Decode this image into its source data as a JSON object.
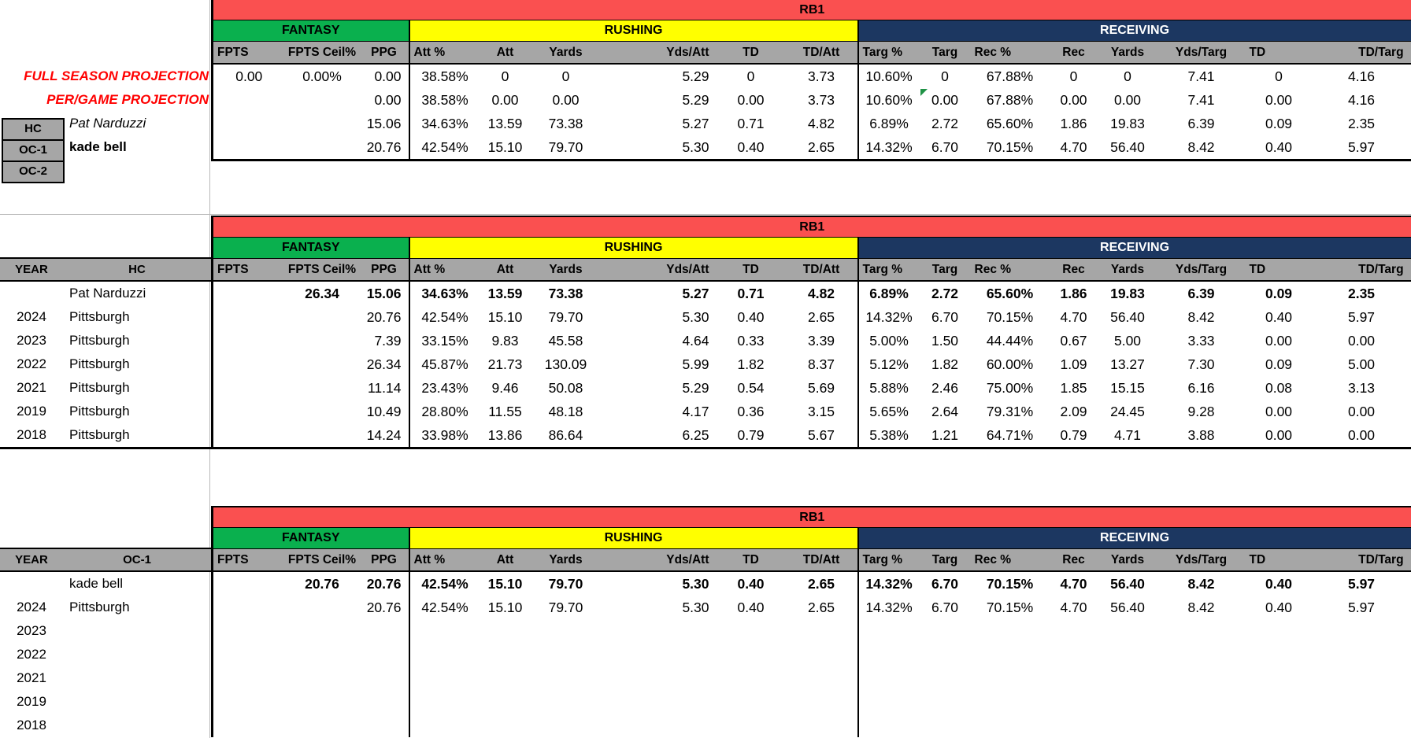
{
  "banner": "RB1",
  "sections": {
    "fantasy": "FANTASY",
    "rushing": "RUSHING",
    "receiving": "RECEIVING"
  },
  "stat_columns": [
    "FPTS",
    "FPTS Ceil%",
    "PPG",
    "Att %",
    "Att",
    "Yards",
    "Yds/Att",
    "TD",
    "TD/Att",
    "Targ %",
    "Targ",
    "Rec %",
    "Rec",
    "Yards",
    "Yds/Targ",
    "TD",
    "TD/Targ"
  ],
  "projection_labels": {
    "full_season": "FULL SEASON PROJECTION",
    "per_game": "PER/GAME PROJECTION"
  },
  "staff": {
    "hc_label": "HC",
    "oc1_label": "OC-1",
    "oc2_label": "OC-2",
    "hc_name": "Pat Narduzzi",
    "oc1_name": "kade bell"
  },
  "history_headers": {
    "year": "YEAR",
    "hc": "HC",
    "oc1": "OC-1"
  },
  "colors": {
    "banner_red": "#FA5050",
    "fantasy_green": "#0AB04E",
    "rushing_yellow": "#FFFF00",
    "receiving_navy": "#1C3761",
    "header_gray": "#A6A6A6",
    "projection_red": "#FF0000",
    "flag_green": "#1F9246"
  },
  "tables": [
    {
      "rows": [
        {
          "cells": [
            "0.00",
            "0.00%",
            "0.00",
            "38.58%",
            "0",
            "0",
            "5.29",
            "0",
            "3.73",
            "10.60%",
            "0",
            "67.88%",
            "0",
            "0",
            "7.41",
            "0",
            "4.16"
          ]
        },
        {
          "cells": [
            "",
            "",
            "0.00",
            "38.58%",
            "0.00",
            "0.00",
            "5.29",
            "0.00",
            "3.73",
            "10.60%",
            "0.00",
            "67.88%",
            "0.00",
            "0.00",
            "7.41",
            "0.00",
            "4.16"
          ],
          "flag_col": 10
        },
        {
          "cells": [
            "",
            "",
            "15.06",
            "34.63%",
            "13.59",
            "73.38",
            "5.27",
            "0.71",
            "4.82",
            "6.89%",
            "2.72",
            "65.60%",
            "1.86",
            "19.83",
            "6.39",
            "0.09",
            "2.35"
          ]
        },
        {
          "cells": [
            "",
            "",
            "20.76",
            "42.54%",
            "15.10",
            "79.70",
            "5.30",
            "0.40",
            "2.65",
            "14.32%",
            "6.70",
            "70.15%",
            "4.70",
            "56.40",
            "8.42",
            "0.40",
            "5.97"
          ]
        }
      ]
    },
    {
      "rows": [
        {
          "year": "",
          "team": "Pat Narduzzi",
          "bold": true,
          "cells": [
            "",
            "26.34",
            "15.06",
            "34.63%",
            "13.59",
            "73.38",
            "5.27",
            "0.71",
            "4.82",
            "6.89%",
            "2.72",
            "65.60%",
            "1.86",
            "19.83",
            "6.39",
            "0.09",
            "2.35"
          ]
        },
        {
          "year": "2024",
          "team": "Pittsburgh",
          "cells": [
            "",
            "",
            "20.76",
            "42.54%",
            "15.10",
            "79.70",
            "5.30",
            "0.40",
            "2.65",
            "14.32%",
            "6.70",
            "70.15%",
            "4.70",
            "56.40",
            "8.42",
            "0.40",
            "5.97"
          ]
        },
        {
          "year": "2023",
          "team": "Pittsburgh",
          "cells": [
            "",
            "",
            "7.39",
            "33.15%",
            "9.83",
            "45.58",
            "4.64",
            "0.33",
            "3.39",
            "5.00%",
            "1.50",
            "44.44%",
            "0.67",
            "5.00",
            "3.33",
            "0.00",
            "0.00"
          ]
        },
        {
          "year": "2022",
          "team": "Pittsburgh",
          "cells": [
            "",
            "",
            "26.34",
            "45.87%",
            "21.73",
            "130.09",
            "5.99",
            "1.82",
            "8.37",
            "5.12%",
            "1.82",
            "60.00%",
            "1.09",
            "13.27",
            "7.30",
            "0.09",
            "5.00"
          ]
        },
        {
          "year": "2021",
          "team": "Pittsburgh",
          "cells": [
            "",
            "",
            "11.14",
            "23.43%",
            "9.46",
            "50.08",
            "5.29",
            "0.54",
            "5.69",
            "5.88%",
            "2.46",
            "75.00%",
            "1.85",
            "15.15",
            "6.16",
            "0.08",
            "3.13"
          ]
        },
        {
          "year": "2019",
          "team": "Pittsburgh",
          "cells": [
            "",
            "",
            "10.49",
            "28.80%",
            "11.55",
            "48.18",
            "4.17",
            "0.36",
            "3.15",
            "5.65%",
            "2.64",
            "79.31%",
            "2.09",
            "24.45",
            "9.28",
            "0.00",
            "0.00"
          ]
        },
        {
          "year": "2018",
          "team": "Pittsburgh",
          "cells": [
            "",
            "",
            "14.24",
            "33.98%",
            "13.86",
            "86.64",
            "6.25",
            "0.79",
            "5.67",
            "5.38%",
            "1.21",
            "64.71%",
            "0.79",
            "4.71",
            "3.88",
            "0.00",
            "0.00"
          ]
        }
      ]
    },
    {
      "rows": [
        {
          "year": "",
          "team": "kade bell",
          "bold": true,
          "cells": [
            "",
            "20.76",
            "20.76",
            "42.54%",
            "15.10",
            "79.70",
            "5.30",
            "0.40",
            "2.65",
            "14.32%",
            "6.70",
            "70.15%",
            "4.70",
            "56.40",
            "8.42",
            "0.40",
            "5.97"
          ]
        },
        {
          "year": "2024",
          "team": "Pittsburgh",
          "cells": [
            "",
            "",
            "20.76",
            "42.54%",
            "15.10",
            "79.70",
            "5.30",
            "0.40",
            "2.65",
            "14.32%",
            "6.70",
            "70.15%",
            "4.70",
            "56.40",
            "8.42",
            "0.40",
            "5.97"
          ]
        },
        {
          "year": "2023",
          "team": "",
          "cells": []
        },
        {
          "year": "2022",
          "team": "",
          "cells": []
        },
        {
          "year": "2021",
          "team": "",
          "cells": []
        },
        {
          "year": "2019",
          "team": "",
          "cells": []
        },
        {
          "year": "2018",
          "team": "",
          "cells": []
        }
      ]
    }
  ]
}
